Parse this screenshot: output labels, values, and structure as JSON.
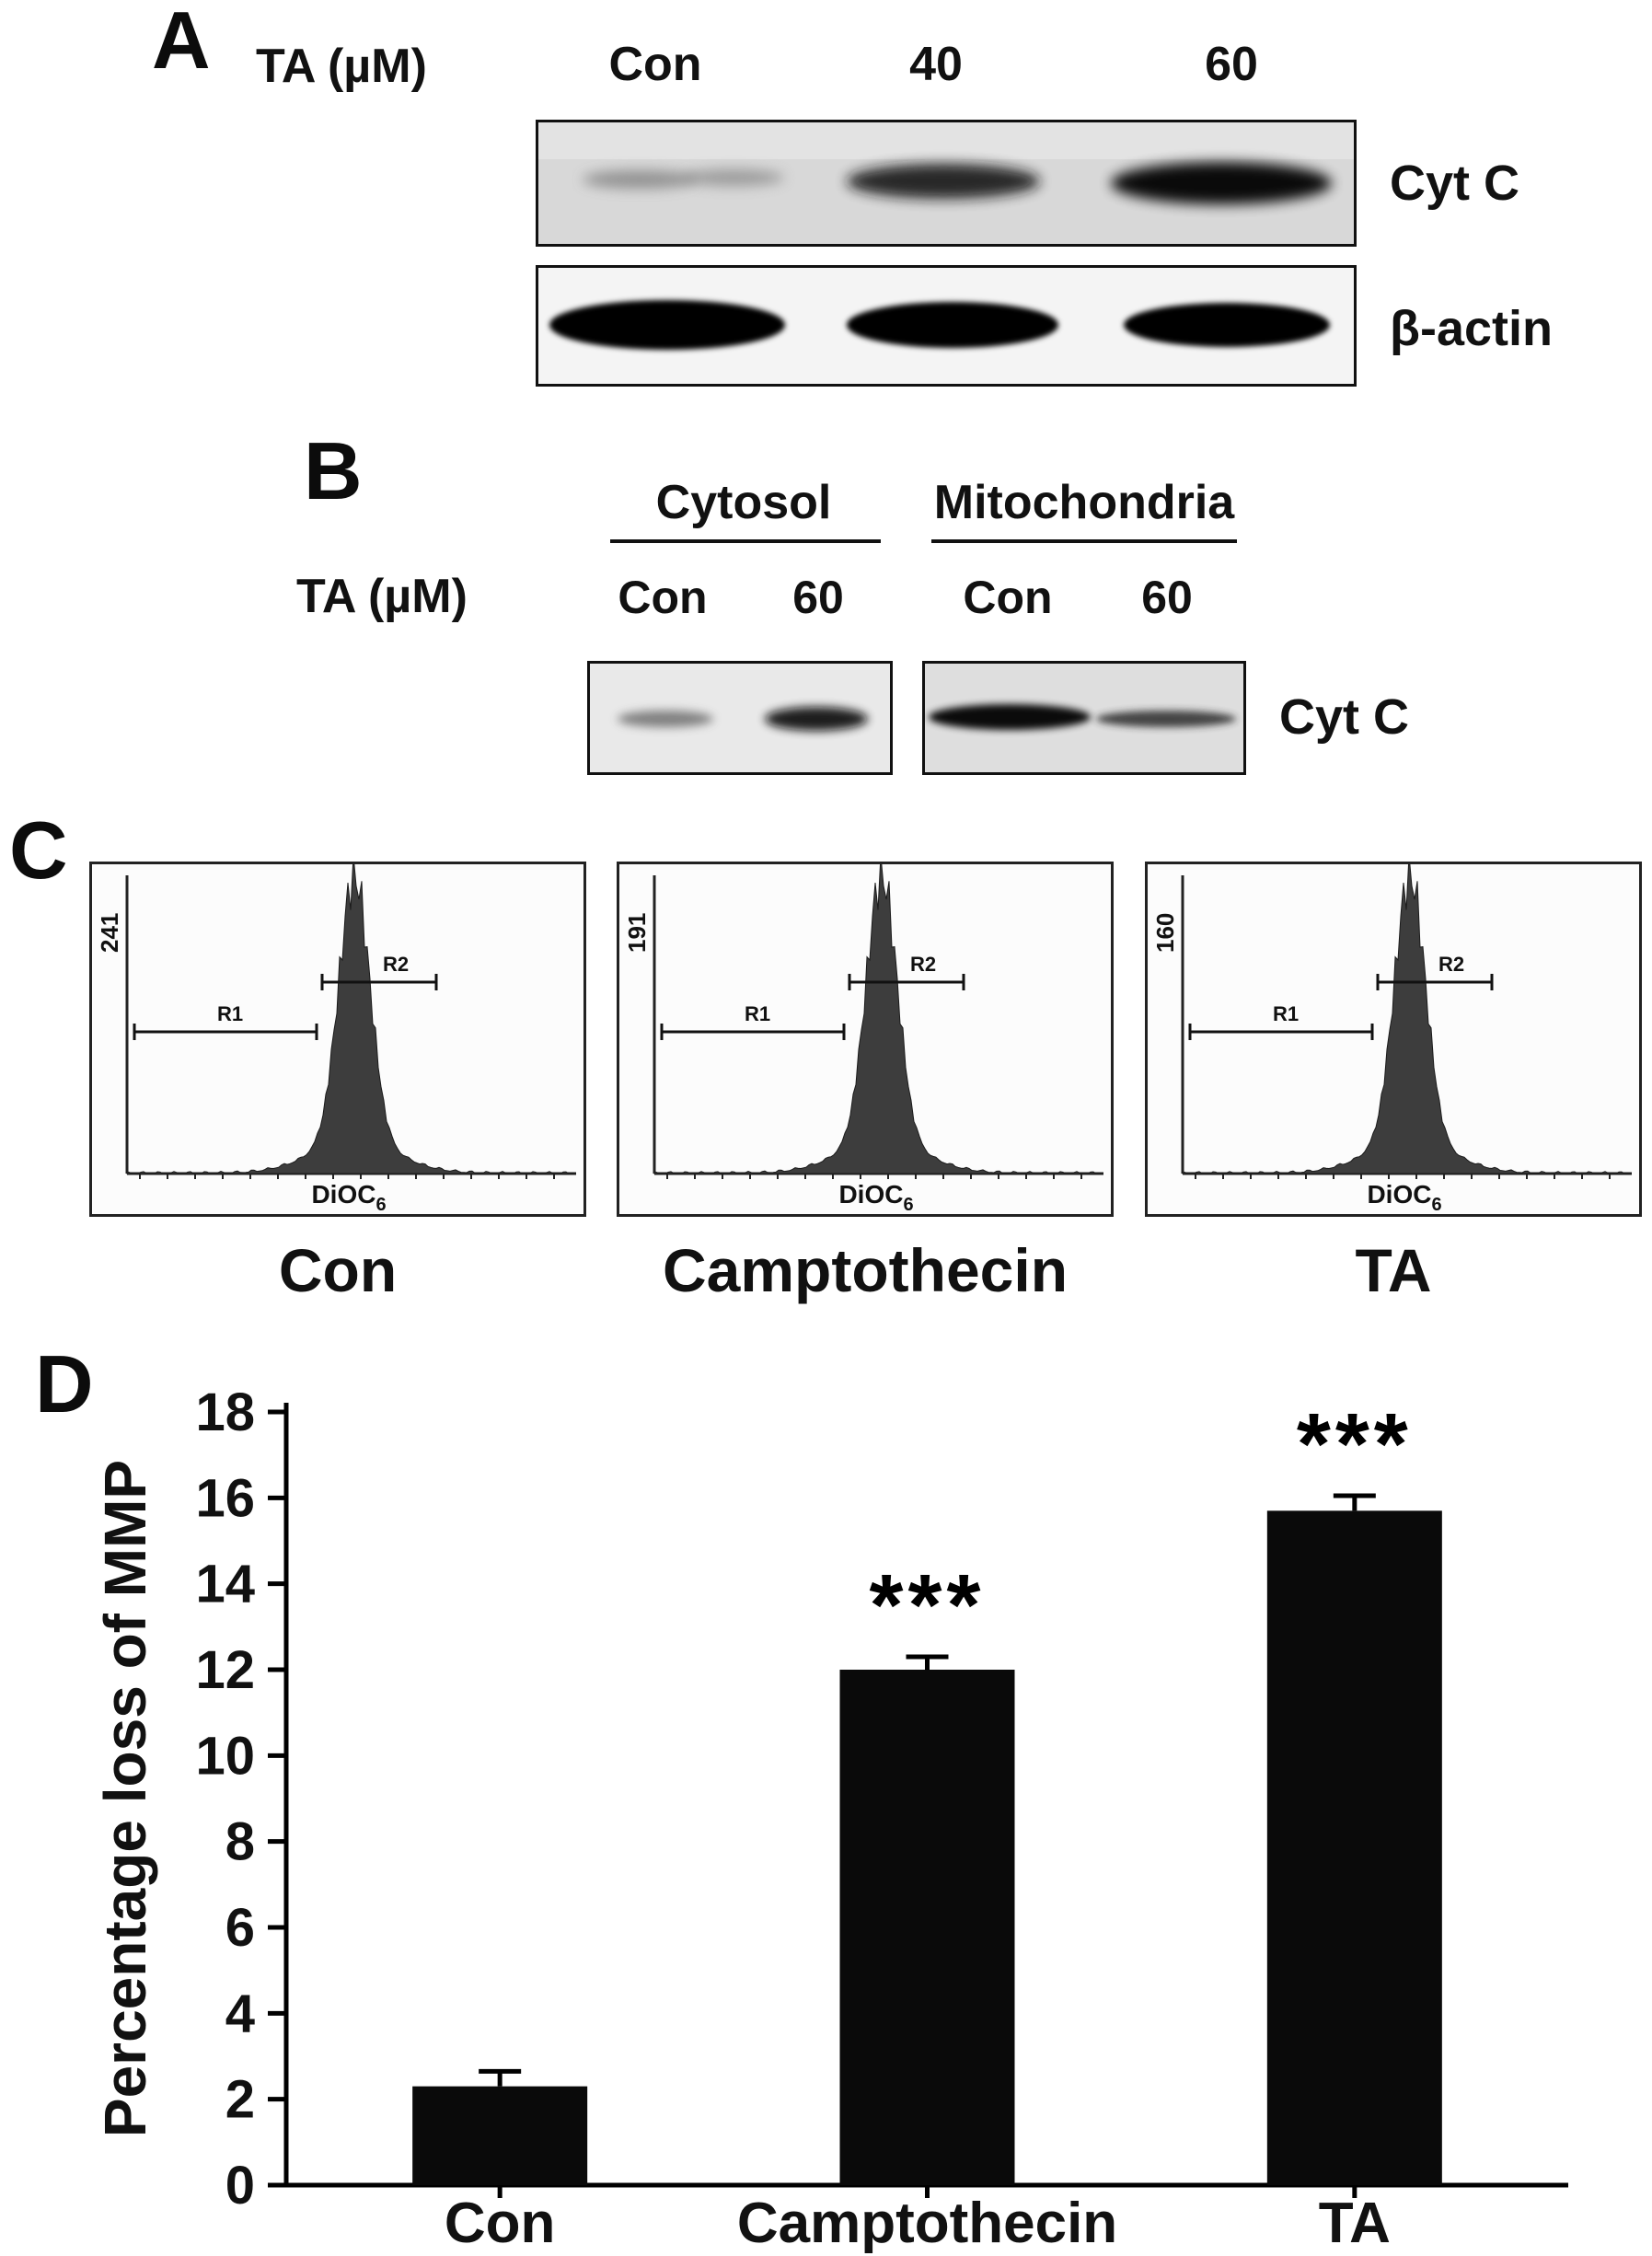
{
  "panel_a": {
    "label": "A",
    "treatment_label": "TA (µM)",
    "lanes": [
      "Con",
      "40",
      "60"
    ],
    "blots": [
      {
        "name": "Cyt C"
      },
      {
        "name": "β-actin"
      }
    ]
  },
  "panel_b": {
    "label": "B",
    "treatment_label": "TA (µM)",
    "fractions": [
      "Cytosol",
      "Mitochondria"
    ],
    "lanes": [
      "Con",
      "60",
      "Con",
      "60"
    ],
    "blot_name": "Cyt C"
  },
  "panel_c": {
    "label": "C",
    "histograms": [
      {
        "ymax": "241",
        "gate1": "R1",
        "gate2": "R2",
        "xlabel": "DiOC",
        "xlabel_sub": "6",
        "caption": "Con"
      },
      {
        "ymax": "191",
        "gate1": "R1",
        "gate2": "R2",
        "xlabel": "DiOC",
        "xlabel_sub": "6",
        "caption": "Camptothecin"
      },
      {
        "ymax": "160",
        "gate1": "R1",
        "gate2": "R2",
        "xlabel": "DiOC",
        "xlabel_sub": "6",
        "caption": "TA"
      }
    ]
  },
  "panel_d": {
    "label": "D"
  },
  "chart_data": {
    "type": "bar",
    "categories": [
      "Con",
      "Camptothecin",
      "TA"
    ],
    "values": [
      2.3,
      12.0,
      15.7
    ],
    "errors": [
      0.35,
      0.3,
      0.35
    ],
    "significance": [
      "",
      "***",
      "***"
    ],
    "title": "",
    "xlabel": "",
    "ylabel": "Percentage loss of MMP",
    "ylim": [
      0,
      18
    ],
    "ytick_step": 2,
    "grid": false,
    "legend": "none",
    "bar_color": "#0a0a0a",
    "axis_color": "#000000"
  }
}
